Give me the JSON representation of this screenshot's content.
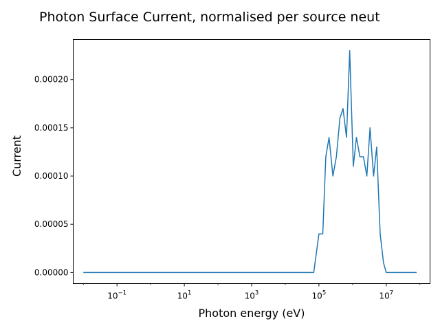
{
  "chart_data": {
    "type": "line",
    "title": "Photon Surface Current, normalised per source neut",
    "xlabel": "Photon energy (eV)",
    "ylabel": "Current",
    "xscale": "log",
    "xlim": [
      0.005,
      200000000
    ],
    "ylim": [
      -1.15e-05,
      0.0002415
    ],
    "grid": false,
    "line_color": "#1f77b4",
    "x_ticks": [
      {
        "value": 0.1,
        "base": "10",
        "exp": "−1"
      },
      {
        "value": 10,
        "base": "10",
        "exp": "1"
      },
      {
        "value": 1000,
        "base": "10",
        "exp": "3"
      },
      {
        "value": 100000,
        "base": "10",
        "exp": "5"
      },
      {
        "value": 10000000,
        "base": "10",
        "exp": "7"
      }
    ],
    "y_ticks": [
      {
        "value": 0,
        "label": "0.00000"
      },
      {
        "value": 5e-05,
        "label": "0.00005"
      },
      {
        "value": 0.0001,
        "label": "0.00010"
      },
      {
        "value": 0.00015,
        "label": "0.00015"
      },
      {
        "value": 0.0002,
        "label": "0.00020"
      }
    ],
    "series": [
      {
        "x": [
          0.01,
          70000,
          100000,
          130000,
          160000,
          200000,
          260000,
          330000,
          420000,
          520000,
          660000,
          820000,
          1050000,
          1300000,
          1650000,
          2100000,
          2650000,
          3300000,
          4200000,
          5200000,
          6600000,
          8300000,
          10000000,
          13000000,
          30000000,
          80000000
        ],
        "y": [
          0,
          0,
          4e-05,
          4e-05,
          0.00012,
          0.00014,
          0.0001,
          0.00012,
          0.00016,
          0.00017,
          0.00014,
          0.00023,
          0.00011,
          0.00014,
          0.00012,
          0.00012,
          0.0001,
          0.00015,
          0.0001,
          0.00013,
          4e-05,
          1e-05,
          0,
          0,
          0,
          0
        ]
      }
    ]
  }
}
